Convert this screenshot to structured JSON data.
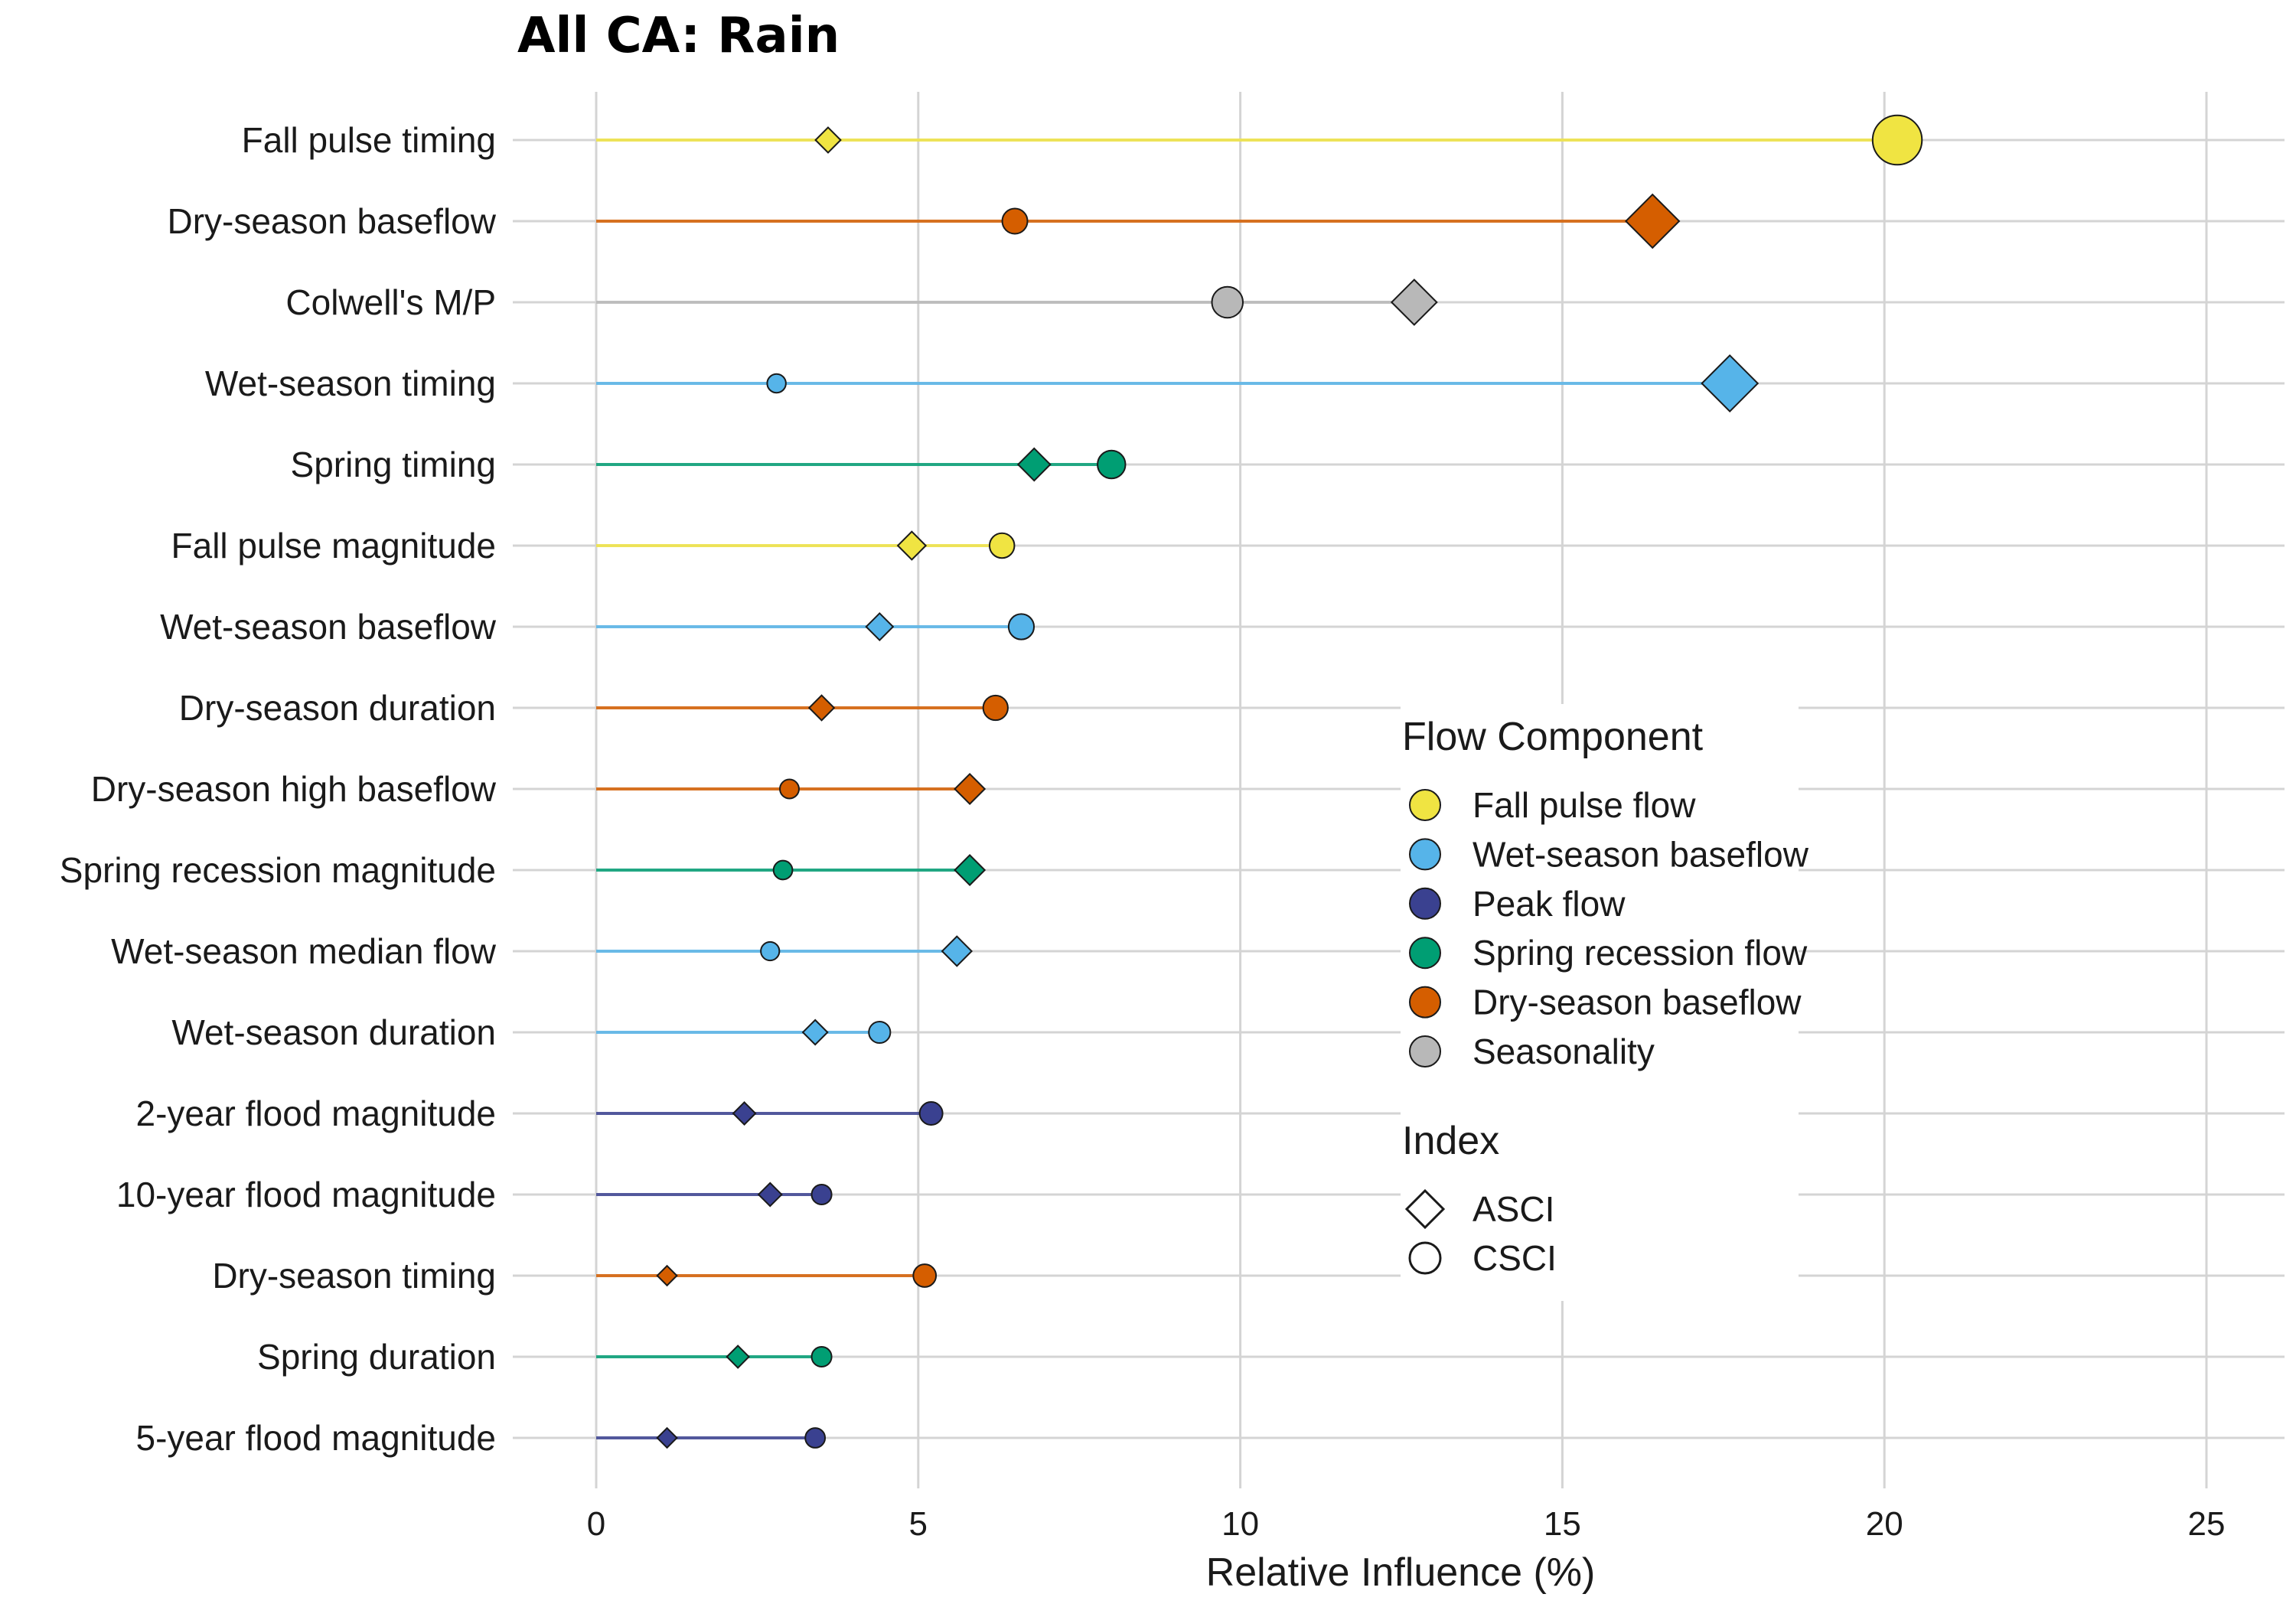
{
  "chart_data": {
    "type": "dumbbell",
    "title": "All CA: Rain",
    "xlabel": "Relative Influence (%)",
    "ylabel": "",
    "xlim": [
      0,
      25
    ],
    "xticks": [
      0,
      5,
      10,
      15,
      20,
      25
    ],
    "grid": true,
    "legend_placement": "center-right",
    "component_colors": {
      "Fall pulse flow": "#f0e442",
      "Wet-season baseflow": "#56b4e9",
      "Peak flow": "#3a4190",
      "Spring recession flow": "#009e73",
      "Dry-season baseflow": "#d55e00",
      "Seasonality": "#b8b8b8"
    },
    "legend": {
      "component_title": "Flow Component",
      "components": [
        "Fall pulse flow",
        "Wet-season baseflow",
        "Peak flow",
        "Spring recession flow",
        "Dry-season baseflow",
        "Seasonality"
      ],
      "index_title": "Index",
      "indices": [
        {
          "label": "ASCI",
          "shape": "diamond"
        },
        {
          "label": "CSCI",
          "shape": "circle"
        }
      ]
    },
    "metrics": [
      {
        "label": "Fall pulse timing",
        "component": "Fall pulse flow",
        "asci": 3.6,
        "csci": 20.2
      },
      {
        "label": "Dry-season baseflow",
        "component": "Dry-season baseflow",
        "asci": 16.4,
        "csci": 6.5
      },
      {
        "label": "Colwell's M/P",
        "component": "Seasonality",
        "asci": 12.7,
        "csci": 9.8
      },
      {
        "label": "Wet-season timing",
        "component": "Wet-season baseflow",
        "asci": 17.6,
        "csci": 2.8
      },
      {
        "label": "Spring timing",
        "component": "Spring recession flow",
        "asci": 6.8,
        "csci": 8.0
      },
      {
        "label": "Fall pulse magnitude",
        "component": "Fall pulse flow",
        "asci": 4.9,
        "csci": 6.3
      },
      {
        "label": "Wet-season baseflow",
        "component": "Wet-season baseflow",
        "asci": 4.4,
        "csci": 6.6
      },
      {
        "label": "Dry-season duration",
        "component": "Dry-season baseflow",
        "asci": 3.5,
        "csci": 6.2
      },
      {
        "label": "Dry-season high baseflow",
        "component": "Dry-season baseflow",
        "asci": 5.8,
        "csci": 3.0
      },
      {
        "label": "Spring recession magnitude",
        "component": "Spring recession flow",
        "asci": 5.8,
        "csci": 2.9
      },
      {
        "label": "Wet-season median flow",
        "component": "Wet-season baseflow",
        "asci": 5.6,
        "csci": 2.7
      },
      {
        "label": "Wet-season duration",
        "component": "Wet-season baseflow",
        "asci": 3.4,
        "csci": 4.4
      },
      {
        "label": "2-year flood magnitude",
        "component": "Peak flow",
        "asci": 2.3,
        "csci": 5.2
      },
      {
        "label": "10-year flood magnitude",
        "component": "Peak flow",
        "asci": 2.7,
        "csci": 3.5
      },
      {
        "label": "Dry-season timing",
        "component": "Dry-season baseflow",
        "asci": 1.1,
        "csci": 5.1
      },
      {
        "label": "Spring duration",
        "component": "Spring recession flow",
        "asci": 2.2,
        "csci": 3.5
      },
      {
        "label": "5-year flood magnitude",
        "component": "Peak flow",
        "asci": 1.1,
        "csci": 3.4
      }
    ]
  }
}
